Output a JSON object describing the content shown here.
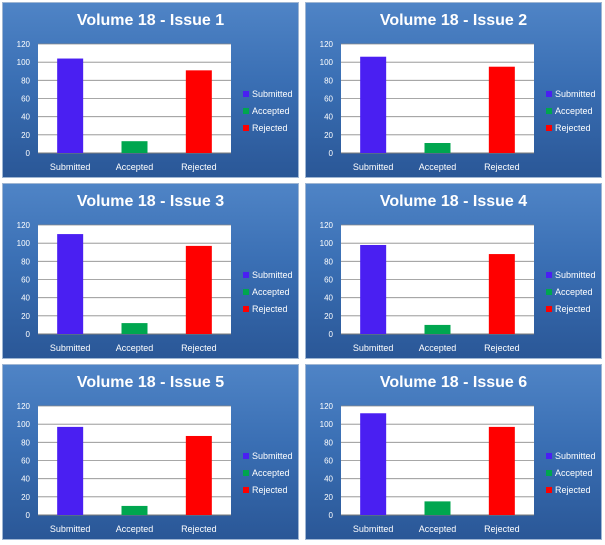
{
  "chart_data": [
    {
      "type": "bar",
      "title": "Volume 18 - Issue 1",
      "categories": [
        "Submitted",
        "Accepted",
        "Rejected"
      ],
      "series": [
        {
          "name": "Submitted",
          "values": [
            104,
            0,
            0
          ]
        },
        {
          "name": "Accepted",
          "values": [
            0,
            13,
            0
          ]
        },
        {
          "name": "Rejected",
          "values": [
            0,
            0,
            91
          ]
        }
      ],
      "ylim": [
        0,
        120
      ],
      "yticks": [
        "0",
        "20",
        "40",
        "60",
        "80",
        "100",
        "120"
      ],
      "grid": true,
      "legend": "right"
    },
    {
      "type": "bar",
      "title": "Volume 18 - Issue 2",
      "categories": [
        "Submitted",
        "Accepted",
        "Rejected"
      ],
      "series": [
        {
          "name": "Submitted",
          "values": [
            106,
            0,
            0
          ]
        },
        {
          "name": "Accepted",
          "values": [
            0,
            11,
            0
          ]
        },
        {
          "name": "Rejected",
          "values": [
            0,
            0,
            95
          ]
        }
      ],
      "ylim": [
        0,
        120
      ],
      "yticks": [
        "0",
        "20",
        "40",
        "60",
        "80",
        "100",
        "120"
      ],
      "grid": true,
      "legend": "right"
    },
    {
      "type": "bar",
      "title": "Volume 18 - Issue 3",
      "categories": [
        "Submitted",
        "Accepted",
        "Rejected"
      ],
      "series": [
        {
          "name": "Submitted",
          "values": [
            110,
            0,
            0
          ]
        },
        {
          "name": "Accepted",
          "values": [
            0,
            12,
            0
          ]
        },
        {
          "name": "Rejected",
          "values": [
            0,
            0,
            97
          ]
        }
      ],
      "ylim": [
        0,
        120
      ],
      "yticks": [
        "0",
        "20",
        "40",
        "60",
        "80",
        "100",
        "120"
      ],
      "grid": true,
      "legend": "right"
    },
    {
      "type": "bar",
      "title": "Volume 18 - Issue 4",
      "categories": [
        "Submitted",
        "Accepted",
        "Rejected"
      ],
      "series": [
        {
          "name": "Submitted",
          "values": [
            98,
            0,
            0
          ]
        },
        {
          "name": "Accepted",
          "values": [
            0,
            10,
            0
          ]
        },
        {
          "name": "Rejected",
          "values": [
            0,
            0,
            88
          ]
        }
      ],
      "ylim": [
        0,
        120
      ],
      "yticks": [
        "0",
        "20",
        "40",
        "60",
        "80",
        "100",
        "120"
      ],
      "grid": true,
      "legend": "right"
    },
    {
      "type": "bar",
      "title": "Volume 18 - Issue 5",
      "categories": [
        "Submitted",
        "Accepted",
        "Rejected"
      ],
      "series": [
        {
          "name": "Submitted",
          "values": [
            97,
            0,
            0
          ]
        },
        {
          "name": "Accepted",
          "values": [
            0,
            10,
            0
          ]
        },
        {
          "name": "Rejected",
          "values": [
            0,
            0,
            87
          ]
        }
      ],
      "ylim": [
        0,
        120
      ],
      "yticks": [
        "0",
        "20",
        "40",
        "60",
        "80",
        "100",
        "120"
      ],
      "grid": true,
      "legend": "right"
    },
    {
      "type": "bar",
      "title": "Volume 18 - Issue 6",
      "categories": [
        "Submitted",
        "Accepted",
        "Rejected"
      ],
      "series": [
        {
          "name": "Submitted",
          "values": [
            112,
            0,
            0
          ]
        },
        {
          "name": "Accepted",
          "values": [
            0,
            15,
            0
          ]
        },
        {
          "name": "Rejected",
          "values": [
            0,
            0,
            97
          ]
        }
      ],
      "ylim": [
        0,
        120
      ],
      "yticks": [
        "0",
        "20",
        "40",
        "60",
        "80",
        "100",
        "120"
      ],
      "grid": true,
      "legend": "right"
    }
  ],
  "colors": {
    "submitted": "#4a1ff2",
    "accepted": "#00a64f",
    "rejected": "#ff0000",
    "plot_background": "#ffffff",
    "gridline": "#8a8a8a",
    "text": "#ffffff"
  },
  "legend_labels": [
    "Submitted",
    "Accepted",
    "Rejected"
  ]
}
